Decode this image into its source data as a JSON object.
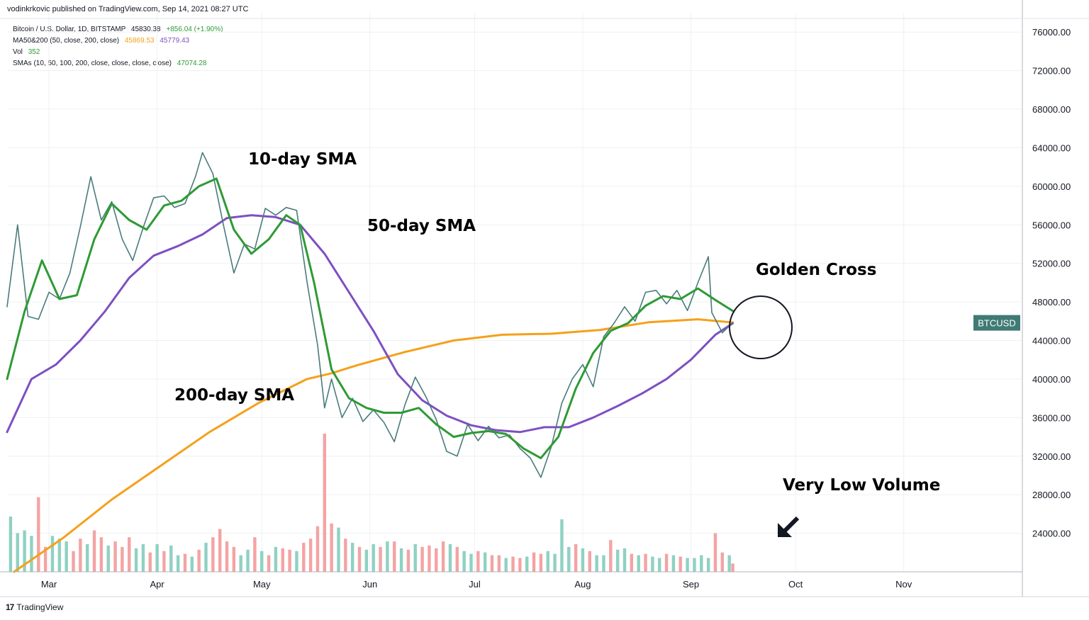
{
  "header": {
    "text": "vodinkrkovic published on TradingView.com, Sep 14, 2021 08:27 UTC"
  },
  "legend": {
    "line1_label": "Bitcoin / U.S. Dollar, 1D, BITSTAMP",
    "line1_value": "45830.38",
    "line1_change": "+856.04 (+1.90%)",
    "line2_label": "MA50&200 (50, close, 200, close)",
    "line2_value_a": "45869.53",
    "line2_value_b": "45779.43",
    "line3_label": "Vol",
    "line3_value": "352",
    "line4_label": "SMAs (10, 50, 100, 200, close, close, close, close)",
    "line4_value": "47074.28"
  },
  "footer": {
    "brand": "TradingView",
    "logo_glyph": "17"
  },
  "annotations": {
    "sma10": "10-day SMA",
    "sma50": "50-day SMA",
    "sma200": "200-day SMA",
    "golden_cross": "Golden Cross",
    "low_volume": "Very Low Volume"
  },
  "colors": {
    "price": "#4a7b7b",
    "sma10": "#2e9a35",
    "sma50": "#7e4fc2",
    "sma200": "#f5a01a",
    "vol_up": "#8fd1c2",
    "vol_down": "#f4a3a3",
    "price_tag_bg": "#3f7a74"
  },
  "chart_data": {
    "type": "line",
    "title": "Bitcoin / U.S. Dollar, 1D, BITSTAMP",
    "ylim": [
      20000,
      78000
    ],
    "y_ticks": [
      "76000.00",
      "72000.00",
      "68000.00",
      "64000.00",
      "60000.00",
      "56000.00",
      "52000.00",
      "48000.00",
      "44000.00",
      "40000.00",
      "36000.00",
      "32000.00",
      "28000.00",
      "24000.00"
    ],
    "x_ticks": [
      "Mar",
      "Apr",
      "May",
      "Jun",
      "Jul",
      "Aug",
      "Sep",
      "Oct",
      "Nov"
    ],
    "x_tick_dates": [
      "2021-03-01",
      "2021-04-01",
      "2021-05-01",
      "2021-06-01",
      "2021-07-01",
      "2021-08-01",
      "2021-09-01",
      "2021-10-01",
      "2021-11-01"
    ],
    "x_range_dates": [
      "2021-02-17",
      "2021-12-05"
    ],
    "price_tag": "BTCUSD",
    "price_tag_value": 45830.38,
    "series": [
      {
        "name": "BTCUSD",
        "type": "line",
        "x": [
          "2021-02-17",
          "2021-02-20",
          "2021-02-23",
          "2021-02-26",
          "2021-03-01",
          "2021-03-04",
          "2021-03-07",
          "2021-03-10",
          "2021-03-13",
          "2021-03-16",
          "2021-03-19",
          "2021-03-22",
          "2021-03-25",
          "2021-03-28",
          "2021-03-31",
          "2021-04-03",
          "2021-04-06",
          "2021-04-09",
          "2021-04-12",
          "2021-04-14",
          "2021-04-17",
          "2021-04-20",
          "2021-04-23",
          "2021-04-26",
          "2021-04-29",
          "2021-05-02",
          "2021-05-05",
          "2021-05-08",
          "2021-05-11",
          "2021-05-14",
          "2021-05-17",
          "2021-05-19",
          "2021-05-21",
          "2021-05-24",
          "2021-05-27",
          "2021-05-30",
          "2021-06-02",
          "2021-06-05",
          "2021-06-08",
          "2021-06-11",
          "2021-06-14",
          "2021-06-17",
          "2021-06-20",
          "2021-06-23",
          "2021-06-26",
          "2021-06-29",
          "2021-07-02",
          "2021-07-05",
          "2021-07-08",
          "2021-07-11",
          "2021-07-14",
          "2021-07-17",
          "2021-07-20",
          "2021-07-23",
          "2021-07-26",
          "2021-07-29",
          "2021-08-01",
          "2021-08-04",
          "2021-08-07",
          "2021-08-10",
          "2021-08-13",
          "2021-08-16",
          "2021-08-19",
          "2021-08-22",
          "2021-08-25",
          "2021-08-28",
          "2021-08-31",
          "2021-09-03",
          "2021-09-06",
          "2021-09-07",
          "2021-09-10",
          "2021-09-13"
        ],
        "y": [
          47500,
          56000,
          46500,
          46200,
          49000,
          48300,
          51000,
          55800,
          61000,
          56500,
          58400,
          54500,
          52300,
          55700,
          58800,
          59000,
          57800,
          58200,
          61000,
          63500,
          61300,
          56000,
          51000,
          54000,
          53500,
          57700,
          57000,
          57800,
          57500,
          50000,
          43500,
          37000,
          40000,
          36000,
          38000,
          35600,
          36800,
          35500,
          33500,
          37300,
          40200,
          38200,
          35800,
          32500,
          32000,
          35300,
          33600,
          35100,
          33900,
          34200,
          32800,
          31800,
          29800,
          33000,
          37500,
          40000,
          41500,
          39200,
          44400,
          45800,
          47500,
          46000,
          49000,
          49200,
          47800,
          49200,
          47100,
          50000,
          52700,
          46900,
          44800,
          45830
        ]
      },
      {
        "name": "10-day SMA",
        "type": "line",
        "x": [
          "2021-02-17",
          "2021-02-22",
          "2021-02-27",
          "2021-03-04",
          "2021-03-09",
          "2021-03-14",
          "2021-03-19",
          "2021-03-24",
          "2021-03-29",
          "2021-04-03",
          "2021-04-08",
          "2021-04-13",
          "2021-04-18",
          "2021-04-23",
          "2021-04-28",
          "2021-05-03",
          "2021-05-08",
          "2021-05-12",
          "2021-05-16",
          "2021-05-21",
          "2021-05-26",
          "2021-05-31",
          "2021-06-05",
          "2021-06-10",
          "2021-06-15",
          "2021-06-20",
          "2021-06-25",
          "2021-06-30",
          "2021-07-05",
          "2021-07-10",
          "2021-07-15",
          "2021-07-20",
          "2021-07-25",
          "2021-07-30",
          "2021-08-04",
          "2021-08-09",
          "2021-08-14",
          "2021-08-19",
          "2021-08-24",
          "2021-08-29",
          "2021-09-03",
          "2021-09-08",
          "2021-09-13"
        ],
        "y": [
          40000,
          47000,
          52300,
          48300,
          48700,
          54500,
          58200,
          56500,
          55500,
          58000,
          58500,
          60000,
          60800,
          55500,
          53000,
          54500,
          57000,
          56000,
          50000,
          41000,
          38000,
          37000,
          36500,
          36500,
          37000,
          35300,
          34000,
          34400,
          34600,
          34300,
          32800,
          31800,
          34000,
          39000,
          42700,
          45000,
          45800,
          47600,
          48600,
          48300,
          49400,
          48200,
          47070
        ]
      },
      {
        "name": "50-day SMA",
        "type": "line",
        "x": [
          "2021-02-17",
          "2021-02-24",
          "2021-03-03",
          "2021-03-10",
          "2021-03-17",
          "2021-03-24",
          "2021-03-31",
          "2021-04-07",
          "2021-04-14",
          "2021-04-21",
          "2021-04-28",
          "2021-05-05",
          "2021-05-12",
          "2021-05-19",
          "2021-05-26",
          "2021-06-02",
          "2021-06-09",
          "2021-06-16",
          "2021-06-23",
          "2021-06-30",
          "2021-07-07",
          "2021-07-14",
          "2021-07-21",
          "2021-07-28",
          "2021-08-04",
          "2021-08-11",
          "2021-08-18",
          "2021-08-25",
          "2021-09-01",
          "2021-09-08",
          "2021-09-13"
        ],
        "y": [
          34500,
          40000,
          41500,
          44000,
          47000,
          50500,
          52800,
          53800,
          55000,
          56700,
          57000,
          56800,
          56000,
          53000,
          49000,
          45000,
          40500,
          37800,
          36200,
          35200,
          34700,
          34500,
          35000,
          35000,
          36000,
          37200,
          38500,
          40000,
          42000,
          44600,
          45780
        ]
      },
      {
        "name": "200-day SMA",
        "type": "line",
        "x": [
          "2021-02-19",
          "2021-03-05",
          "2021-03-19",
          "2021-04-02",
          "2021-04-16",
          "2021-04-30",
          "2021-05-14",
          "2021-05-21",
          "2021-05-28",
          "2021-06-11",
          "2021-06-25",
          "2021-07-09",
          "2021-07-23",
          "2021-08-06",
          "2021-08-20",
          "2021-09-03",
          "2021-09-13"
        ],
        "y": [
          20000,
          23500,
          27500,
          31000,
          34500,
          37500,
          40000,
          40600,
          41400,
          42800,
          44000,
          44600,
          44700,
          45100,
          45900,
          46200,
          45870
        ]
      },
      {
        "name": "Volume",
        "type": "bar",
        "x": [
          "2021-02-18",
          "2021-02-20",
          "2021-02-22",
          "2021-02-24",
          "2021-02-26",
          "2021-02-28",
          "2021-03-02",
          "2021-03-04",
          "2021-03-06",
          "2021-03-08",
          "2021-03-10",
          "2021-03-12",
          "2021-03-14",
          "2021-03-16",
          "2021-03-18",
          "2021-03-20",
          "2021-03-22",
          "2021-03-24",
          "2021-03-26",
          "2021-03-28",
          "2021-03-30",
          "2021-04-01",
          "2021-04-03",
          "2021-04-05",
          "2021-04-07",
          "2021-04-09",
          "2021-04-11",
          "2021-04-13",
          "2021-04-15",
          "2021-04-17",
          "2021-04-19",
          "2021-04-21",
          "2021-04-23",
          "2021-04-25",
          "2021-04-27",
          "2021-04-29",
          "2021-05-01",
          "2021-05-03",
          "2021-05-05",
          "2021-05-07",
          "2021-05-09",
          "2021-05-11",
          "2021-05-13",
          "2021-05-15",
          "2021-05-17",
          "2021-05-19",
          "2021-05-21",
          "2021-05-23",
          "2021-05-25",
          "2021-05-27",
          "2021-05-29",
          "2021-05-31",
          "2021-06-02",
          "2021-06-04",
          "2021-06-06",
          "2021-06-08",
          "2021-06-10",
          "2021-06-12",
          "2021-06-14",
          "2021-06-16",
          "2021-06-18",
          "2021-06-20",
          "2021-06-22",
          "2021-06-24",
          "2021-06-26",
          "2021-06-28",
          "2021-06-30",
          "2021-07-02",
          "2021-07-04",
          "2021-07-06",
          "2021-07-08",
          "2021-07-10",
          "2021-07-12",
          "2021-07-14",
          "2021-07-16",
          "2021-07-18",
          "2021-07-20",
          "2021-07-22",
          "2021-07-24",
          "2021-07-26",
          "2021-07-28",
          "2021-07-30",
          "2021-08-01",
          "2021-08-03",
          "2021-08-05",
          "2021-08-07",
          "2021-08-09",
          "2021-08-11",
          "2021-08-13",
          "2021-08-15",
          "2021-08-17",
          "2021-08-19",
          "2021-08-21",
          "2021-08-23",
          "2021-08-25",
          "2021-08-27",
          "2021-08-29",
          "2021-08-31",
          "2021-09-02",
          "2021-09-04",
          "2021-09-06",
          "2021-09-08",
          "2021-09-10",
          "2021-09-12",
          "2021-09-13"
        ],
        "values": [
          4000,
          2800,
          3000,
          2600,
          5400,
          1800,
          2600,
          2400,
          2200,
          1500,
          2400,
          2000,
          3000,
          2500,
          1900,
          2200,
          1800,
          2500,
          1700,
          2000,
          1400,
          2000,
          1500,
          1900,
          1200,
          1300,
          1100,
          1600,
          2100,
          2500,
          3100,
          2200,
          1800,
          1200,
          1600,
          2500,
          1500,
          1200,
          1800,
          1700,
          1600,
          1500,
          2100,
          2400,
          3300,
          10000,
          3500,
          3200,
          2400,
          2100,
          1800,
          1600,
          2000,
          1800,
          2200,
          2200,
          1700,
          1600,
          2000,
          1800,
          1900,
          1700,
          2200,
          2000,
          1800,
          1500,
          1300,
          1500,
          1400,
          1200,
          1200,
          1000,
          1100,
          1000,
          1100,
          1400,
          1300,
          1500,
          1300,
          3800,
          1800,
          2000,
          1700,
          1500,
          1200,
          1200,
          2300,
          1600,
          1700,
          1300,
          1200,
          1300,
          1100,
          1000,
          1300,
          1200,
          1100,
          1000,
          1000,
          1200,
          1000,
          2800,
          1400,
          1200,
          600
        ],
        "up": [
          true,
          true,
          true,
          true,
          false,
          false,
          true,
          true,
          true,
          false,
          false,
          true,
          false,
          false,
          true,
          false,
          false,
          false,
          true,
          true,
          false,
          true,
          false,
          true,
          true,
          false,
          true,
          false,
          true,
          false,
          false,
          false,
          false,
          true,
          true,
          false,
          true,
          false,
          true,
          false,
          false,
          true,
          false,
          false,
          false,
          false,
          false,
          true,
          false,
          true,
          false,
          true,
          true,
          false,
          true,
          false,
          true,
          false,
          true,
          false,
          false,
          false,
          false,
          true,
          false,
          true,
          true,
          false,
          true,
          false,
          false,
          true,
          false,
          false,
          true,
          false,
          false,
          true,
          true,
          true,
          true,
          false,
          true,
          false,
          true,
          true,
          false,
          true,
          true,
          false,
          true,
          false,
          true,
          true,
          false,
          true,
          false,
          true,
          true,
          true,
          true,
          false,
          false,
          true,
          false
        ]
      }
    ]
  }
}
